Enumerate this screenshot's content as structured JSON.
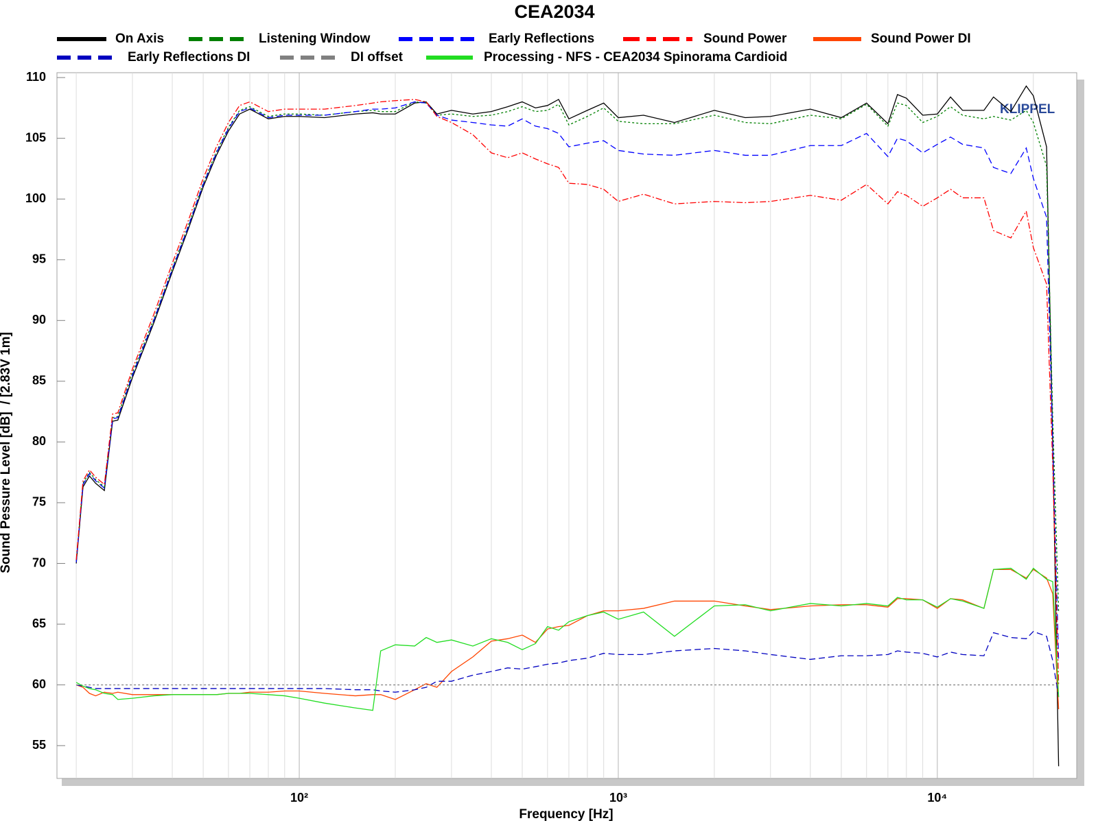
{
  "chart_data": {
    "type": "line",
    "title": "CEA2034",
    "xlabel": "Frequency [Hz]",
    "ylabel": "Sound Pessure Level [dB]  / [2.83V 1m]",
    "annotation": "KLIPPEL",
    "xscale": "log",
    "grid": "x",
    "xlim": [
      17.4,
      27350
    ],
    "ylim": [
      52.3,
      110.4
    ],
    "xticks": [
      {
        "value": 100,
        "label": "10²"
      },
      {
        "value": 1000,
        "label": "10³"
      },
      {
        "value": 10000,
        "label": "10⁴"
      }
    ],
    "xminorticks": [
      20,
      30,
      40,
      50,
      60,
      70,
      80,
      90,
      200,
      300,
      400,
      500,
      600,
      700,
      800,
      900,
      2000,
      3000,
      4000,
      5000,
      6000,
      7000,
      8000,
      9000,
      20000
    ],
    "yticks": [
      55,
      60,
      65,
      70,
      75,
      80,
      85,
      90,
      95,
      100,
      105,
      110
    ],
    "x": [
      20,
      21,
      22,
      23,
      24.5,
      26,
      27,
      30,
      35,
      40,
      45,
      50,
      55,
      60,
      65,
      70,
      80,
      90,
      100,
      120,
      150,
      170,
      180,
      200,
      230,
      250,
      270,
      300,
      350,
      400,
      450,
      500,
      550,
      600,
      650,
      700,
      800,
      900,
      1000,
      1200,
      1500,
      2000,
      2500,
      3000,
      4000,
      5000,
      6000,
      7000,
      7500,
      8000,
      9000,
      10000,
      11000,
      12000,
      14000,
      15000,
      17000,
      19000,
      20000,
      22000,
      23000,
      24000
    ],
    "series": [
      {
        "name": "On Axis",
        "color": "#000000",
        "linestyle": "solid",
        "values": [
          70,
          76.3,
          77.2,
          76.6,
          76.0,
          81.7,
          81.8,
          85.3,
          89.8,
          94,
          97.6,
          101,
          103.6,
          105.6,
          107.0,
          107.4,
          106.6,
          106.8,
          106.8,
          106.7,
          107.0,
          107.1,
          107.0,
          107.0,
          107.9,
          108.0,
          107.0,
          107.3,
          107.0,
          107.2,
          107.6,
          108.0,
          107.5,
          107.7,
          108.2,
          106.6,
          107.3,
          107.9,
          106.7,
          106.9,
          106.3,
          107.3,
          106.7,
          106.8,
          107.4,
          106.7,
          107.9,
          106.2,
          108.6,
          108.3,
          106.9,
          107.0,
          108.4,
          107.3,
          107.3,
          108.4,
          107.2,
          109.3,
          108.5,
          104.3,
          80,
          53.3
        ]
      },
      {
        "name": "Listening Window",
        "color": "#008000",
        "linestyle": "dotted",
        "values": [
          70.2,
          76.6,
          77.5,
          76.9,
          76.3,
          82.0,
          82.1,
          85.7,
          90.1,
          94.3,
          97.9,
          101.3,
          103.9,
          105.9,
          107.3,
          107.6,
          106.8,
          107.0,
          107.0,
          106.9,
          107.2,
          107.3,
          107.2,
          107.2,
          108.0,
          107.9,
          106.9,
          107.0,
          106.8,
          106.9,
          107.2,
          107.6,
          107.2,
          107.3,
          107.8,
          106.1,
          106.8,
          107.5,
          106.4,
          106.2,
          106.2,
          106.9,
          106.3,
          106.2,
          106.9,
          106.6,
          107.8,
          106.0,
          107.9,
          107.7,
          106.3,
          106.8,
          107.6,
          106.9,
          106.6,
          106.8,
          106.5,
          107.3,
          106.3,
          102.7,
          82,
          66
        ]
      },
      {
        "name": "Early Reflections",
        "color": "#0000ff",
        "linestyle": "dashed",
        "values": [
          70.1,
          76.5,
          77.4,
          76.8,
          76.2,
          81.9,
          82.0,
          85.5,
          90.0,
          94.2,
          97.8,
          101.2,
          103.8,
          105.8,
          107.2,
          107.5,
          106.7,
          106.9,
          106.9,
          106.9,
          107.2,
          107.4,
          107.4,
          107.5,
          108.0,
          107.9,
          106.9,
          106.5,
          106.3,
          106.1,
          106.0,
          106.6,
          106.0,
          105.8,
          105.4,
          104.3,
          104.6,
          104.8,
          104.0,
          103.7,
          103.6,
          104.0,
          103.6,
          103.6,
          104.4,
          104.4,
          105.4,
          103.5,
          105.0,
          104.8,
          103.8,
          104.5,
          105.1,
          104.5,
          104.2,
          102.6,
          102.1,
          104.2,
          101.7,
          98.5,
          80,
          62
        ]
      },
      {
        "name": "Sound Power",
        "color": "#ff0000",
        "linestyle": "dashdot",
        "values": [
          70.3,
          76.8,
          77.7,
          77.1,
          76.5,
          82.3,
          82.4,
          86.0,
          90.5,
          94.7,
          98.3,
          101.7,
          104.3,
          106.3,
          107.7,
          108.0,
          107.2,
          107.4,
          107.4,
          107.4,
          107.7,
          107.9,
          108.0,
          108.1,
          108.2,
          108.0,
          106.8,
          106.3,
          105.3,
          103.8,
          103.4,
          103.8,
          103.3,
          102.9,
          102.6,
          101.3,
          101.2,
          100.8,
          99.8,
          100.4,
          99.6,
          99.8,
          99.7,
          99.8,
          100.3,
          99.9,
          101.2,
          99.6,
          100.6,
          100.3,
          99.4,
          100.1,
          100.8,
          100.1,
          100.1,
          97.4,
          96.8,
          99.0,
          96.0,
          93.0,
          78,
          60
        ]
      },
      {
        "name": "Sound Power DI",
        "color": "#ff4500",
        "linestyle": "solid",
        "values": [
          60.0,
          59.8,
          59.3,
          59.1,
          59.4,
          59.3,
          59.4,
          59.2,
          59.2,
          59.2,
          59.2,
          59.2,
          59.2,
          59.3,
          59.3,
          59.4,
          59.4,
          59.5,
          59.5,
          59.3,
          59.1,
          59.2,
          59.2,
          58.8,
          59.6,
          60.1,
          59.8,
          61.1,
          62.3,
          63.6,
          63.8,
          64.1,
          63.5,
          64.6,
          64.8,
          64.9,
          65.7,
          66.1,
          66.1,
          66.3,
          66.9,
          66.9,
          66.5,
          66.2,
          66.5,
          66.6,
          66.6,
          66.4,
          67.1,
          67.1,
          67.0,
          66.3,
          67.1,
          67.0,
          66.3,
          69.5,
          69.5,
          68.8,
          69.5,
          68.8,
          67.5,
          58
        ]
      },
      {
        "name": "Early Reflections DI",
        "color": "#0000c0",
        "linestyle": "dashed",
        "values": [
          60.0,
          59.9,
          59.8,
          59.7,
          59.7,
          59.7,
          59.7,
          59.7,
          59.7,
          59.7,
          59.7,
          59.7,
          59.7,
          59.7,
          59.7,
          59.7,
          59.7,
          59.7,
          59.7,
          59.7,
          59.6,
          59.6,
          59.5,
          59.4,
          59.6,
          59.8,
          60.3,
          60.3,
          60.8,
          61.1,
          61.4,
          61.3,
          61.5,
          61.7,
          61.8,
          62.0,
          62.2,
          62.6,
          62.5,
          62.5,
          62.8,
          63.0,
          62.8,
          62.5,
          62.1,
          62.4,
          62.4,
          62.5,
          62.8,
          62.7,
          62.6,
          62.3,
          62.7,
          62.5,
          62.4,
          64.3,
          63.9,
          63.8,
          64.4,
          64.0,
          62,
          59
        ]
      },
      {
        "name": "DI offset",
        "color": "#808080",
        "linestyle": "dotted",
        "x": [
          20,
          24000
        ],
        "values": [
          60,
          60
        ]
      },
      {
        "name": "Processing - NFS - CEA2034 Spinorama Cardioid",
        "color": "#22dd22",
        "linestyle": "solid",
        "values": [
          60.2,
          59.9,
          59.7,
          59.6,
          59.3,
          59.2,
          58.8,
          58.9,
          59.1,
          59.2,
          59.2,
          59.2,
          59.2,
          59.3,
          59.3,
          59.3,
          59.2,
          59.1,
          58.9,
          58.5,
          58.1,
          57.9,
          62.8,
          63.3,
          63.2,
          63.9,
          63.5,
          63.7,
          63.2,
          63.8,
          63.5,
          62.9,
          63.4,
          64.8,
          64.5,
          65.2,
          65.7,
          66.0,
          65.4,
          66.0,
          64.0,
          66.5,
          66.6,
          66.1,
          66.7,
          66.5,
          66.7,
          66.5,
          67.2,
          67.0,
          67.0,
          66.4,
          67.1,
          66.9,
          66.3,
          69.5,
          69.6,
          68.7,
          69.6,
          68.7,
          68.5,
          59
        ]
      }
    ]
  }
}
